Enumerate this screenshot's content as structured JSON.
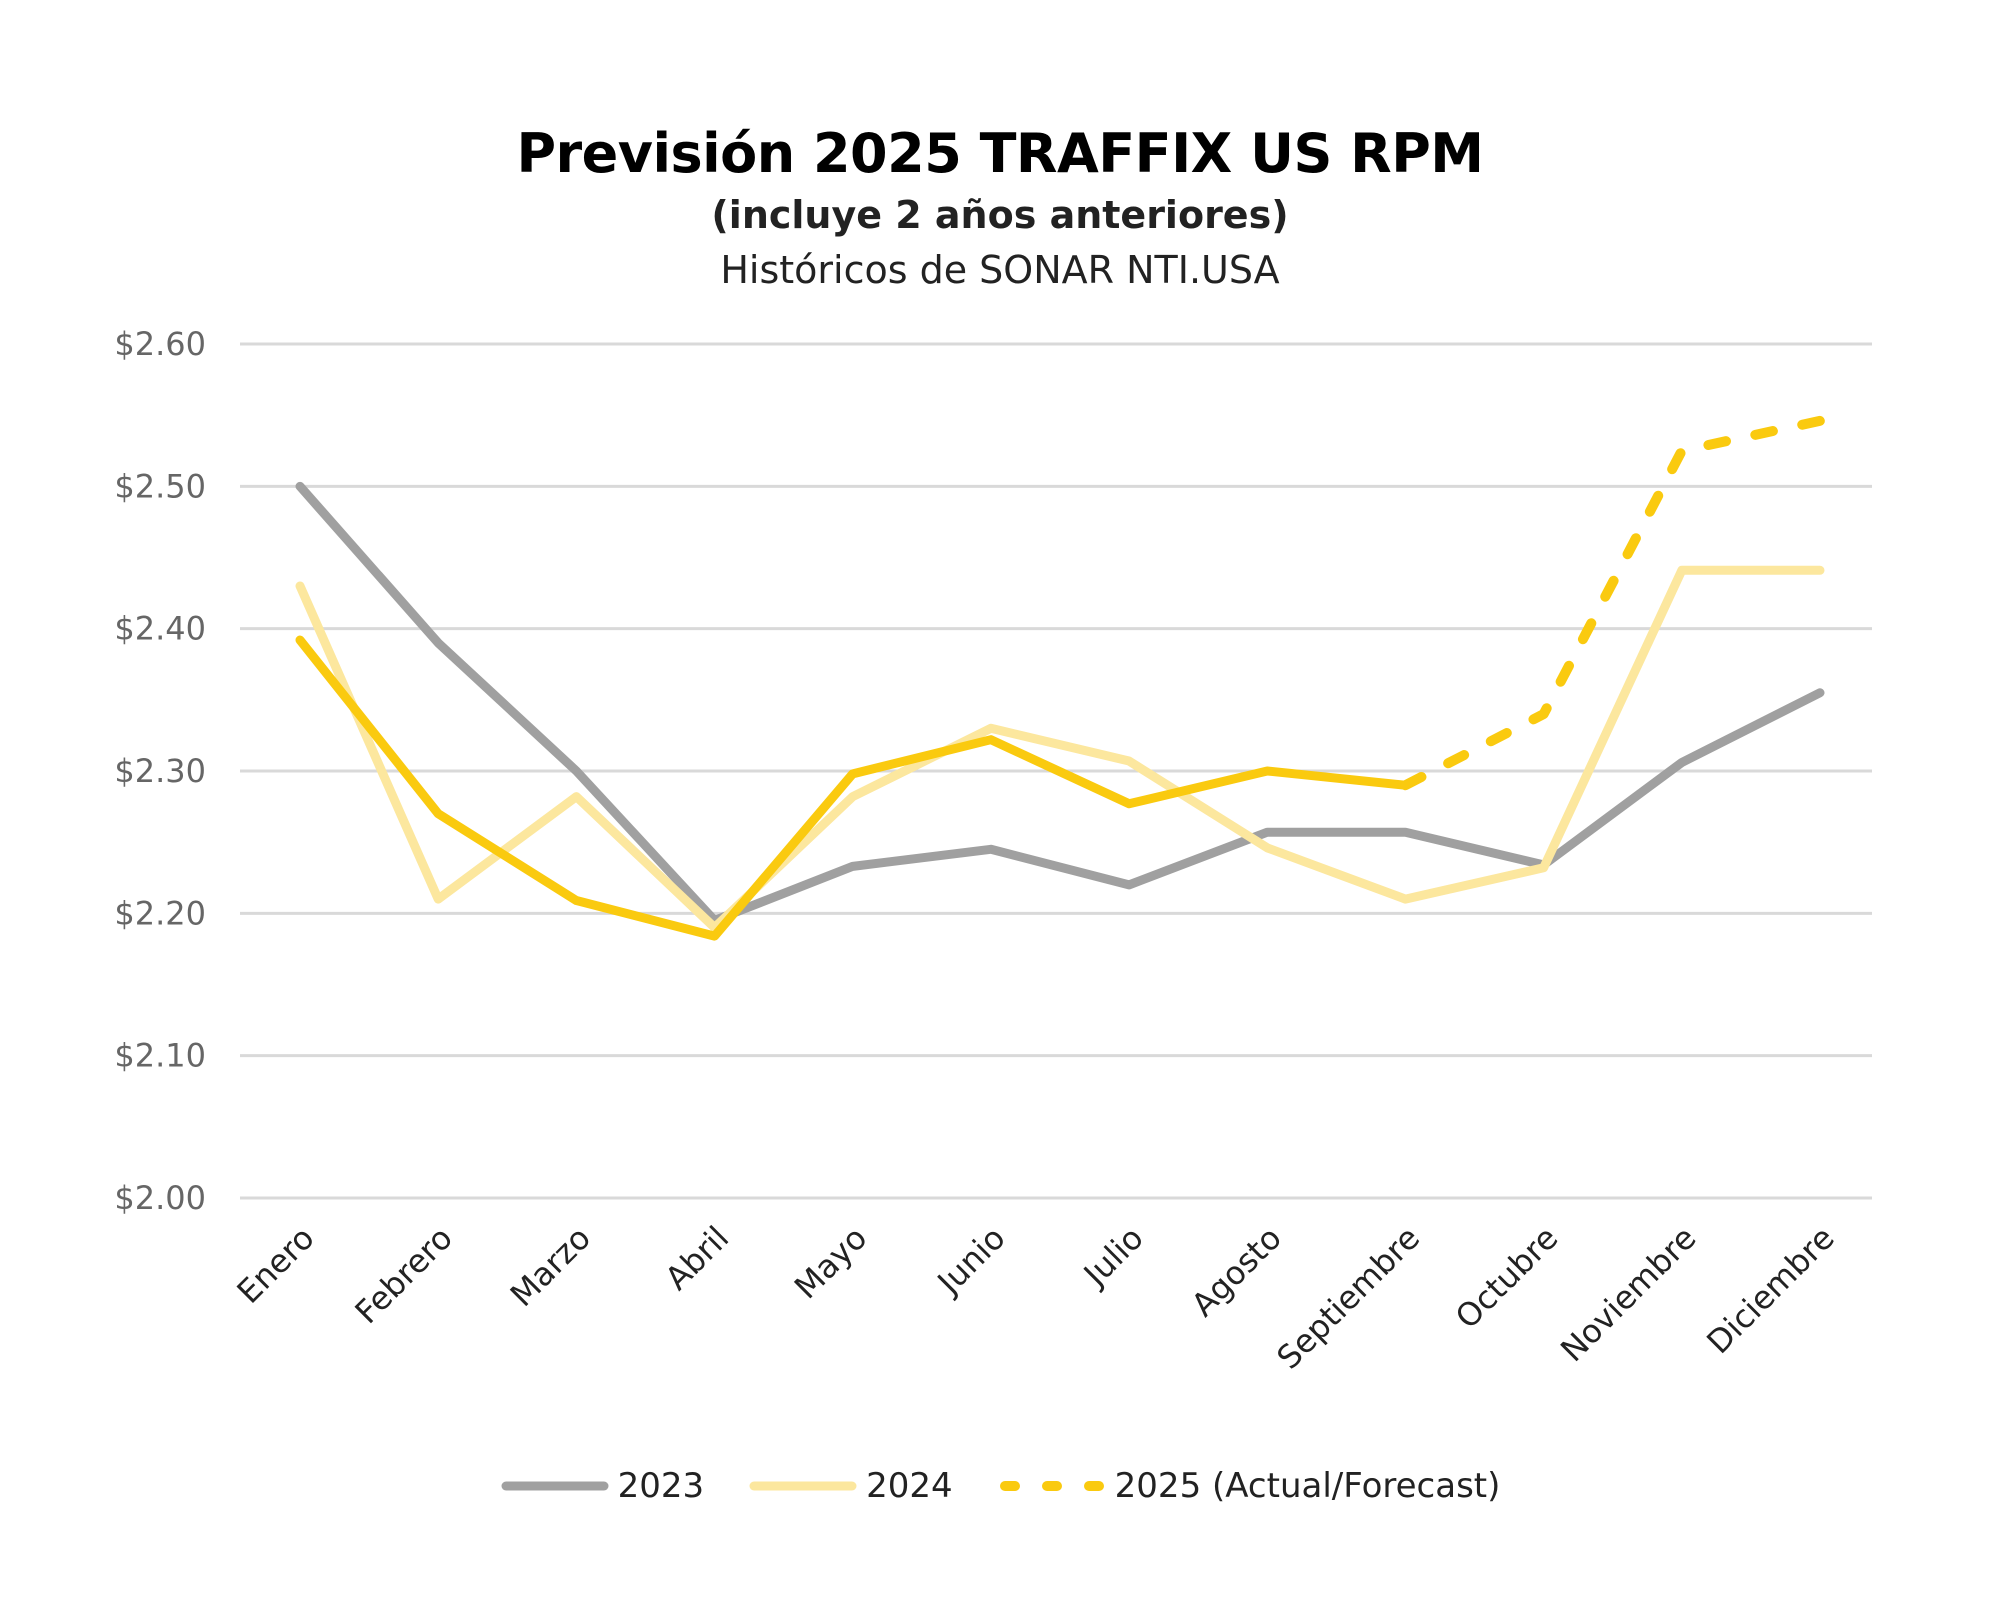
{
  "chart_data": {
    "type": "line",
    "title": "Previsión 2025 TRAFFIX US RPM",
    "subtitle": "(incluye 2 años anteriores)",
    "source": "Históricos de SONAR NTI.USA",
    "xlabel": "",
    "ylabel": "",
    "ylim": [
      2.0,
      2.6
    ],
    "yticks": [
      "$2.00",
      "$2.10",
      "$2.20",
      "$2.30",
      "$2.40",
      "$2.50",
      "$2.60"
    ],
    "ytick_values": [
      2.0,
      2.1,
      2.2,
      2.3,
      2.4,
      2.5,
      2.6
    ],
    "grid": true,
    "legend_position": "bottom",
    "categories": [
      "Enero",
      "Febrero",
      "Marzo",
      "Abril",
      "Mayo",
      "Junio",
      "Julio",
      "Agosto",
      "Septiembre",
      "Octubre",
      "Noviembre",
      "Diciembre"
    ],
    "series": [
      {
        "name": "2023",
        "color": "#A0A0A0",
        "style": "solid",
        "values": [
          2.5,
          2.39,
          2.3,
          2.195,
          2.233,
          2.245,
          2.22,
          2.257,
          2.257,
          2.234,
          2.306,
          2.355
        ]
      },
      {
        "name": "2024",
        "color": "#FCE79E",
        "style": "solid",
        "values": [
          2.43,
          2.21,
          2.282,
          2.19,
          2.282,
          2.33,
          2.307,
          2.246,
          2.21,
          2.232,
          2.441,
          2.441
        ]
      },
      {
        "name": "2025 (Actual/Forecast)",
        "color": "#FACA0F",
        "style": "solid-then-dashed",
        "actual_through_index": 8,
        "values": [
          2.392,
          2.27,
          2.209,
          2.184,
          2.298,
          2.322,
          2.277,
          2.3,
          2.29,
          2.34,
          2.525,
          2.546
        ]
      }
    ]
  },
  "legend": {
    "items": [
      {
        "label": "2023",
        "color": "#A0A0A0",
        "style": "solid"
      },
      {
        "label": "2024",
        "color": "#FCE79E",
        "style": "solid"
      },
      {
        "label": "2025 (Actual/Forecast)",
        "color": "#FACA0F",
        "style": "dashed"
      }
    ]
  },
  "colors": {
    "grid": "#D9D9D9",
    "axis_text": "#666666"
  }
}
